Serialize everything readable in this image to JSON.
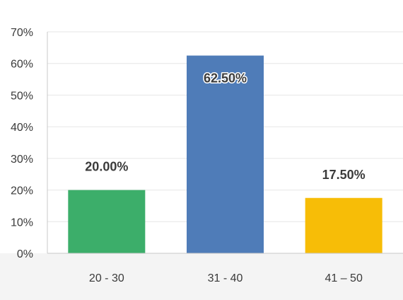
{
  "chart_data": {
    "type": "bar",
    "categories": [
      "20 - 30",
      "31 - 40",
      "41 – 50"
    ],
    "values": [
      20.0,
      62.5,
      17.5
    ],
    "data_labels": [
      "20.00%",
      "62.50%",
      "17.50%"
    ],
    "colors": [
      "#3cae6a",
      "#4f7cb8",
      "#f7bd07"
    ],
    "ylim": [
      0,
      70
    ],
    "yticks": [
      0,
      10,
      20,
      30,
      40,
      50,
      60,
      70
    ],
    "ytick_labels": [
      "0%",
      "10%",
      "20%",
      "30%",
      "40%",
      "50%",
      "60%",
      "70%"
    ],
    "grid": true,
    "legend": "none",
    "title": "",
    "xlabel": "",
    "ylabel": ""
  }
}
